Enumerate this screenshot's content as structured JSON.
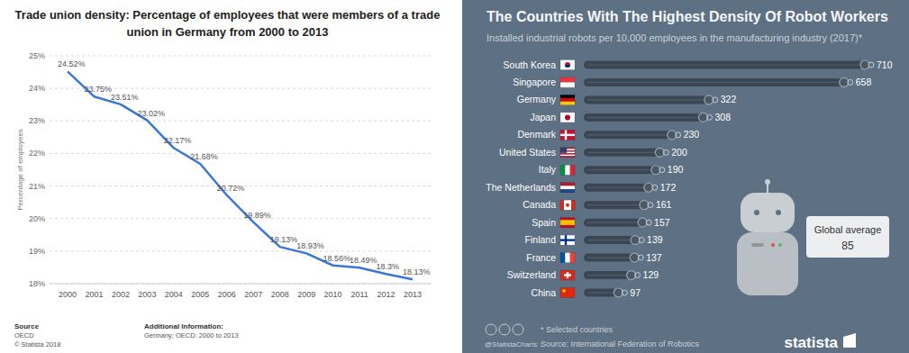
{
  "chart_data": [
    {
      "type": "line",
      "title": "Trade union density: Percentage of employees that were members of a trade union in Germany from 2000 to 2013",
      "y_label": "Percentage of employees",
      "categories": [
        "2000",
        "2001",
        "2002",
        "2003",
        "2004",
        "2005",
        "2006",
        "2007",
        "2008",
        "2009",
        "2010",
        "2011",
        "2012",
        "2013"
      ],
      "values": [
        24.52,
        23.75,
        23.51,
        23.02,
        22.17,
        21.68,
        20.72,
        19.89,
        19.13,
        18.93,
        18.56,
        18.49,
        18.3,
        18.13
      ],
      "value_labels": [
        "24.52%",
        "23.75%",
        "23.51%",
        "23.02%",
        "22.17%",
        "21.68%",
        "20.72%",
        "19.89%",
        "19.13%",
        "18.93%",
        "18.56%",
        "18.49%",
        "18.3%",
        "18.13%"
      ],
      "color": "#3a76d6",
      "ylim": [
        18,
        25
      ],
      "yticks": [
        {
          "value": 18,
          "label": "18%"
        },
        {
          "value": 19,
          "label": "19%"
        },
        {
          "value": 20,
          "label": "20%"
        },
        {
          "value": 21,
          "label": "21%"
        },
        {
          "value": 22,
          "label": "22%"
        },
        {
          "value": 23,
          "label": "23%"
        },
        {
          "value": 24,
          "label": "24%"
        },
        {
          "value": 25,
          "label": "25%"
        }
      ],
      "grid": true,
      "data_labels": true,
      "source_label": "Source",
      "source": "OECD",
      "copyright": "© Statista 2018",
      "additional_info_label": "Additional Information:",
      "additional_info": "Germany; OECD: 2000 to 2013"
    },
    {
      "type": "bar",
      "orientation": "horizontal",
      "title": "The Countries With The Highest Density Of Robot Workers",
      "subtitle": "Installed industrial robots per 10,000 employees in the manufacturing industry (2017)*",
      "categories": [
        "South Korea",
        "Singapore",
        "Germany",
        "Japan",
        "Denmark",
        "United States",
        "Italy",
        "The Netherlands",
        "Canada",
        "Spain",
        "Finland",
        "France",
        "Switzerland",
        "China"
      ],
      "values": [
        710,
        658,
        322,
        308,
        230,
        200,
        190,
        172,
        161,
        157,
        139,
        137,
        129,
        97
      ],
      "color": "#3a4653",
      "xlim": [
        0,
        710
      ],
      "tick_labels": false,
      "data_labels": true,
      "annotation": {
        "label": "Global average",
        "value": 85
      },
      "note": "* Selected countries",
      "credit": "@StatistaCharts",
      "source": "Source: International Federation of Robotics",
      "brand": "statista"
    }
  ]
}
